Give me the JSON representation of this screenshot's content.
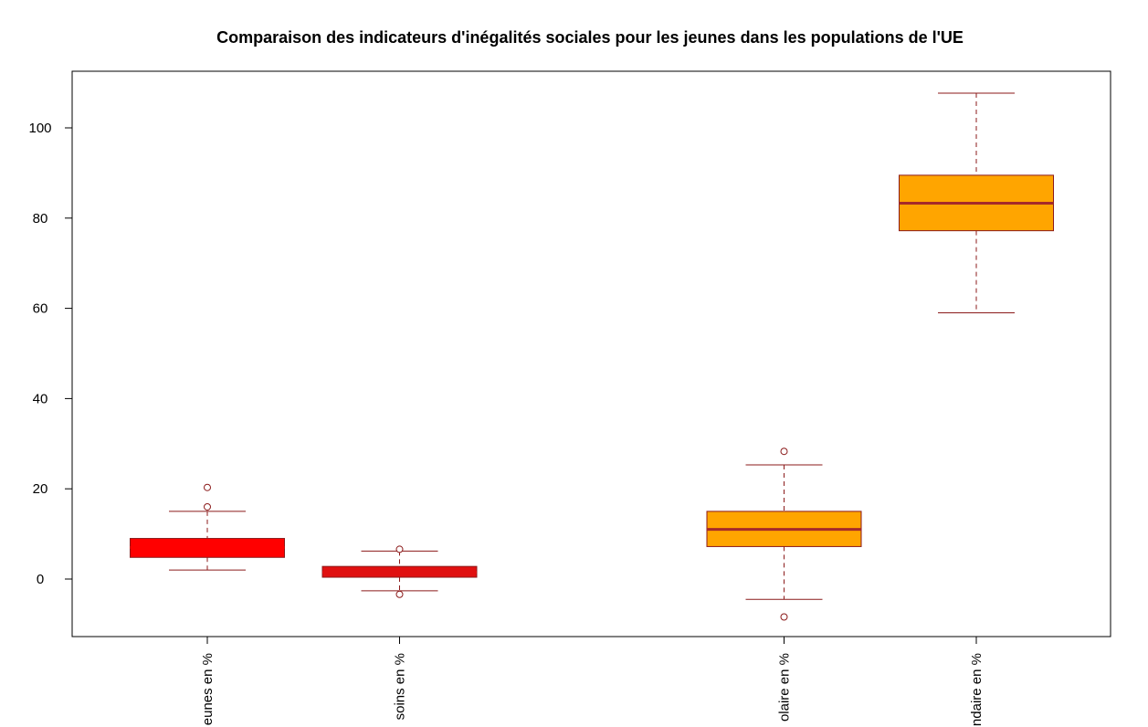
{
  "chart_data": {
    "type": "boxplot",
    "title": "Comparaison des indicateurs d'inégalités sociales pour les jeunes dans les populations de l'UE",
    "xlabel": "",
    "ylabel": "",
    "ylim": [
      -13,
      112
    ],
    "yticks": [
      0,
      20,
      40,
      60,
      80,
      100
    ],
    "grid": false,
    "border_color": "#8b1a1a",
    "boxes": [
      {
        "label": "eunes en %",
        "position": 1,
        "whisker_low": 2.0,
        "q1": 4.8,
        "median": 7.0,
        "q3": 9.0,
        "whisker_high": 15.0,
        "outliers": [
          16.0,
          20.3
        ],
        "fill": "#ff0000",
        "median_color": "#ff0000"
      },
      {
        "label": "soins en %",
        "position": 2,
        "whisker_low": -2.6,
        "q1": 0.4,
        "median": 1.5,
        "q3": 2.8,
        "whisker_high": 6.2,
        "outliers": [
          6.6,
          -3.4
        ],
        "fill": "#e01010",
        "median_color": "#e01010"
      },
      {
        "label": "olaire en %",
        "position": 4,
        "whisker_low": -4.5,
        "q1": 7.2,
        "median": 11.0,
        "q3": 15.0,
        "whisker_high": 25.3,
        "outliers": [
          28.3,
          -8.4
        ],
        "fill": "#ffa500",
        "median_color": "#a52a2a"
      },
      {
        "label": "ndaire en %",
        "position": 5,
        "whisker_low": 59.0,
        "q1": 77.2,
        "median": 83.3,
        "q3": 89.5,
        "whisker_high": 107.7,
        "outliers": [],
        "fill": "#ffa500",
        "median_color": "#a52a2a"
      }
    ]
  }
}
